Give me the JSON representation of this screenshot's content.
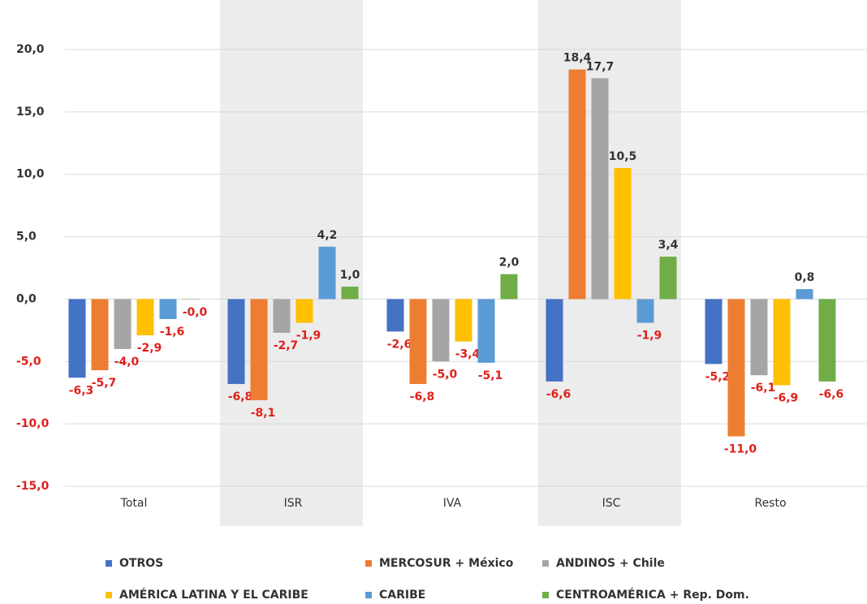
{
  "chart_data": {
    "type": "bar",
    "categories": [
      "Total",
      "ISR",
      "IVA",
      "ISC",
      "Resto"
    ],
    "series": [
      {
        "name": "OTROS",
        "color": "#4472c4",
        "values": [
          -6.3,
          -6.8,
          -2.6,
          -6.6,
          -5.2
        ],
        "value_labels": [
          "-6,3",
          "-6,8",
          "-2,6",
          "-6,6",
          "-5,2"
        ]
      },
      {
        "name": "MERCOSUR + México",
        "color": "#ed7d31",
        "values": [
          -5.7,
          -8.1,
          -6.8,
          18.4,
          -11.0
        ],
        "value_labels": [
          "-5,7",
          "-8,1",
          "-6,8",
          "18,4",
          "-11,0"
        ]
      },
      {
        "name": "ANDINOS + Chile",
        "color": "#a5a5a5",
        "values": [
          -4.0,
          -2.7,
          -5.0,
          17.7,
          -6.1
        ],
        "value_labels": [
          "-4,0",
          "-2,7",
          "-5,0",
          "17,7",
          "-6,1"
        ]
      },
      {
        "name": "AMÉRICA LATINA Y EL CARIBE",
        "color": "#ffc000",
        "values": [
          -2.9,
          -1.9,
          -3.4,
          10.5,
          -6.9
        ],
        "value_labels": [
          "-2,9",
          "-1,9",
          "-3,4",
          "10,5",
          "-6,9"
        ]
      },
      {
        "name": "CARIBE",
        "color": "#5b9bd5",
        "values": [
          -1.6,
          4.2,
          -5.1,
          -1.9,
          0.8
        ],
        "value_labels": [
          "-1,6",
          "4,2",
          "-5,1",
          "-1,9",
          "0,8"
        ]
      },
      {
        "name": "CENTROAMÉRICA + Rep. Dom.",
        "color": "#70ad47",
        "values": [
          -0.03,
          1.0,
          2.0,
          3.4,
          -6.6
        ],
        "value_labels": [
          "-0,0",
          "1,0",
          "2,0",
          "3,4",
          "-6,6"
        ]
      }
    ],
    "ylim": [
      -15,
      20
    ],
    "yticks": [
      {
        "value": -15,
        "label": "-15,0"
      },
      {
        "value": -10,
        "label": "-10,0"
      },
      {
        "value": -5,
        "label": "-5,0"
      },
      {
        "value": 0,
        "label": "0,0"
      },
      {
        "value": 5,
        "label": "5,0"
      },
      {
        "value": 10,
        "label": "10,0"
      },
      {
        "value": 15,
        "label": "15,0"
      },
      {
        "value": 20,
        "label": "20,0"
      }
    ],
    "grid": true,
    "band_shading": true,
    "legend": "bottom"
  }
}
